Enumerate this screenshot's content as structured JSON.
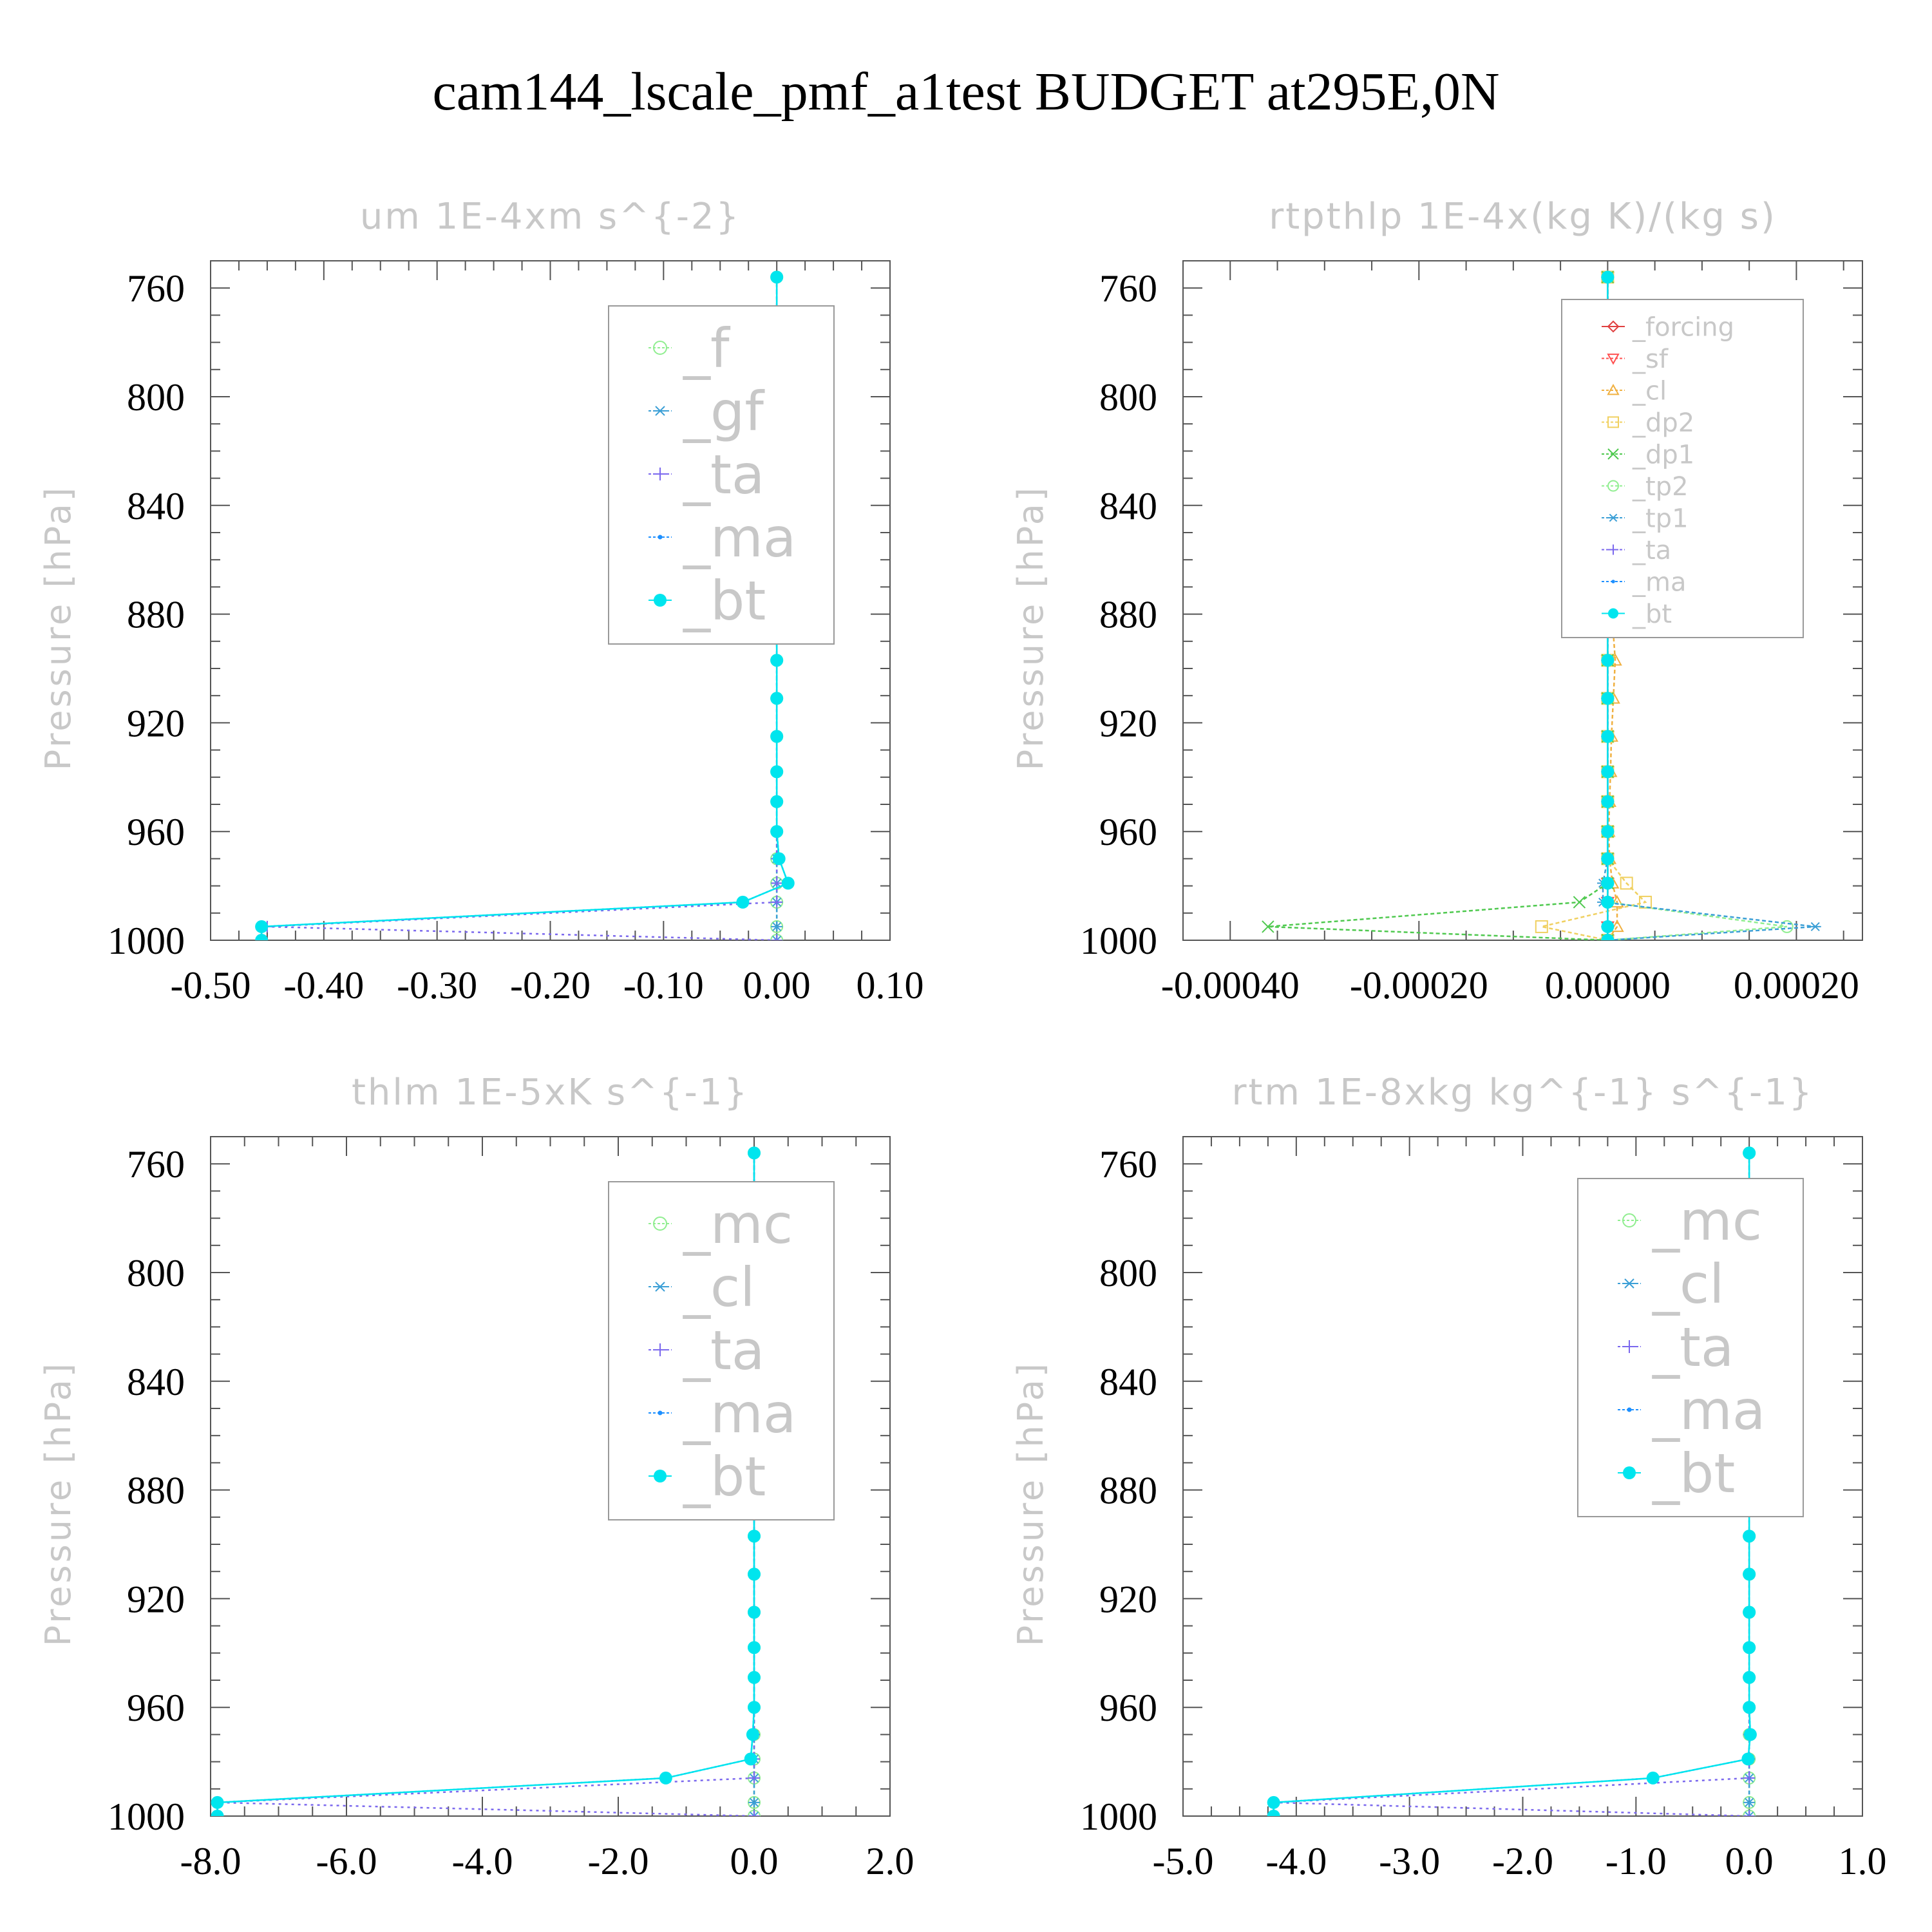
{
  "figure": {
    "title": "cam144_lscale_pmf_a1test  BUDGET at295E,0N"
  },
  "chart_data": [
    {
      "type": "line",
      "title": "um  1E-4xm s^{-2}",
      "ylabel": "Pressure [hPa]",
      "xlim": [
        -0.5,
        0.1
      ],
      "ylim": [
        1000,
        750
      ],
      "xticks": [
        "-0.50",
        "-0.40",
        "-0.30",
        "-0.20",
        "-0.10",
        "0.00",
        "0.10"
      ],
      "xtick_values": [
        -0.5,
        -0.4,
        -0.3,
        -0.2,
        -0.1,
        0.0,
        0.1
      ],
      "yticks": [
        "760",
        "800",
        "840",
        "880",
        "920",
        "960",
        "1000"
      ],
      "ytick_values": [
        760,
        800,
        840,
        880,
        920,
        960,
        1000
      ],
      "legend_scale": 2,
      "pressure": [
        756,
        781,
        804,
        826,
        847,
        865,
        882,
        897,
        911,
        925,
        938,
        949,
        960,
        970,
        979,
        986,
        995,
        1000
      ],
      "series": [
        {
          "name": "_f",
          "color": "#90ee90",
          "marker": "circle-open",
          "dash": "6,4",
          "values": [
            0,
            0,
            0,
            0,
            0,
            0,
            0,
            0,
            0,
            0,
            0,
            0,
            0,
            0,
            0,
            0,
            0,
            0
          ]
        },
        {
          "name": "_gf",
          "color": "#3b9fd6",
          "marker": "asterisk",
          "dash": "6,4",
          "values": [
            0,
            0,
            0,
            0,
            0,
            0,
            0,
            0,
            0,
            0,
            0,
            0,
            0,
            0,
            0,
            0,
            0,
            0
          ]
        },
        {
          "name": "_ta",
          "color": "#7b68ee",
          "marker": "plus",
          "dash": "4,6",
          "values": [
            0,
            0,
            0,
            0,
            0,
            0,
            0,
            0,
            0,
            0,
            0,
            0,
            0,
            0,
            0,
            0,
            -0.45,
            0
          ]
        },
        {
          "name": "_ma",
          "color": "#1e90ff",
          "marker": "dot",
          "dash": "3,3",
          "values": [
            0,
            0,
            0,
            0,
            0,
            0,
            0,
            0,
            0,
            0,
            0,
            0,
            0,
            0.002,
            0.01,
            -0.03,
            -0.455,
            -0.455
          ]
        },
        {
          "name": "_bt",
          "color": "#00e5ee",
          "marker": "filled",
          "dash": "",
          "values": [
            0,
            0,
            0,
            0,
            0,
            0,
            0,
            0,
            0,
            0,
            0,
            0,
            0,
            0.002,
            0.01,
            -0.03,
            -0.455,
            -0.455
          ]
        }
      ]
    },
    {
      "type": "line",
      "title": "rtpthlp  1E-4x(kg K)/(kg s)",
      "ylabel": "Pressure [hPa]",
      "xlim": [
        -0.00045,
        0.00027
      ],
      "ylim": [
        1000,
        750
      ],
      "xticks": [
        "-0.00040",
        "-0.00020",
        "0.00000",
        "0.00020"
      ],
      "xtick_values": [
        -0.0004,
        -0.0002,
        0.0,
        0.0002
      ],
      "yticks": [
        "760",
        "800",
        "840",
        "880",
        "920",
        "960",
        "1000"
      ],
      "ytick_values": [
        760,
        800,
        840,
        880,
        920,
        960,
        1000
      ],
      "legend_scale": 1,
      "pressure": [
        756,
        781,
        804,
        826,
        847,
        865,
        882,
        897,
        911,
        925,
        938,
        949,
        960,
        970,
        979,
        986,
        995,
        1000
      ],
      "series": [
        {
          "name": "_forcing",
          "color": "#e04040",
          "marker": "diamond-open",
          "dash": "",
          "values": [
            0,
            0,
            0,
            0,
            0,
            0,
            0,
            0,
            0,
            0,
            0,
            0,
            0,
            0,
            0,
            0,
            0,
            0
          ]
        },
        {
          "name": "_sf",
          "color": "#ff5050",
          "marker": "triangle-down",
          "dash": "6,4",
          "values": [
            0,
            0,
            0,
            0,
            0,
            0,
            0,
            0,
            0,
            0,
            0,
            0,
            0,
            0,
            0,
            0,
            0,
            0
          ]
        },
        {
          "name": "_cl",
          "color": "#f0b040",
          "marker": "triangle-up",
          "dash": "6,4",
          "values": [
            0,
            0,
            0,
            0,
            0,
            3e-06,
            5e-06,
            8e-06,
            6e-06,
            4e-06,
            3e-06,
            2e-06,
            1e-06,
            2e-06,
            5e-06,
            1e-05,
            1e-05,
            0
          ]
        },
        {
          "name": "_dp2",
          "color": "#f0d060",
          "marker": "square-open",
          "dash": "6,4",
          "values": [
            0,
            0,
            0,
            0,
            0,
            0,
            0,
            0,
            0,
            0,
            0,
            0,
            0,
            0,
            2e-05,
            4e-05,
            -7e-05,
            0
          ]
        },
        {
          "name": "_dp1",
          "color": "#4fc94f",
          "marker": "x",
          "dash": "6,4",
          "values": [
            0,
            0,
            0,
            0,
            0,
            0,
            0,
            0,
            0,
            0,
            0,
            0,
            0,
            0,
            0,
            -3e-05,
            -0.00036,
            0
          ]
        },
        {
          "name": "_tp2",
          "color": "#90ee90",
          "marker": "circle-open",
          "dash": "6,4",
          "values": [
            0,
            0,
            0,
            0,
            0,
            0,
            0,
            0,
            0,
            0,
            0,
            0,
            0,
            0,
            0,
            0,
            0.00019,
            0
          ]
        },
        {
          "name": "_tp1",
          "color": "#3b9fd6",
          "marker": "asterisk",
          "dash": "6,4",
          "values": [
            0,
            0,
            0,
            0,
            0,
            0,
            0,
            0,
            0,
            0,
            0,
            0,
            0,
            0,
            -5e-06,
            -5e-06,
            0.00022,
            0
          ]
        },
        {
          "name": "_ta",
          "color": "#7b68ee",
          "marker": "plus",
          "dash": "4,6",
          "values": [
            0,
            0,
            0,
            0,
            0,
            0,
            0,
            0,
            0,
            0,
            0,
            0,
            0,
            0,
            0,
            0,
            0,
            0
          ]
        },
        {
          "name": "_ma",
          "color": "#1e90ff",
          "marker": "dot",
          "dash": "3,3",
          "values": [
            0,
            0,
            0,
            0,
            0,
            0,
            0,
            0,
            0,
            0,
            0,
            0,
            0,
            0,
            0,
            0,
            0,
            0
          ]
        },
        {
          "name": "_bt",
          "color": "#00e5ee",
          "marker": "filled",
          "dash": "",
          "values": [
            0,
            0,
            0,
            0,
            0,
            0,
            0,
            0,
            0,
            0,
            0,
            0,
            0,
            0,
            0,
            0,
            0,
            0
          ]
        }
      ]
    },
    {
      "type": "line",
      "title": "thlm  1E-5xK s^{-1}",
      "ylabel": "Pressure [hPa]",
      "xlim": [
        -8.0,
        2.0
      ],
      "ylim": [
        1000,
        750
      ],
      "xticks": [
        "-8.0",
        "-6.0",
        "-4.0",
        "-2.0",
        "0.0",
        "2.0"
      ],
      "xtick_values": [
        -8.0,
        -6.0,
        -4.0,
        -2.0,
        0.0,
        2.0
      ],
      "yticks": [
        "760",
        "800",
        "840",
        "880",
        "920",
        "960",
        "1000"
      ],
      "ytick_values": [
        760,
        800,
        840,
        880,
        920,
        960,
        1000
      ],
      "legend_scale": 2,
      "pressure": [
        756,
        781,
        804,
        826,
        847,
        865,
        882,
        897,
        911,
        925,
        938,
        949,
        960,
        970,
        979,
        986,
        995,
        1000
      ],
      "series": [
        {
          "name": "_mc",
          "color": "#90ee90",
          "marker": "circle-open",
          "dash": "6,4",
          "values": [
            0,
            0,
            0,
            0,
            0,
            0,
            0,
            0,
            0,
            0,
            0,
            0,
            0,
            0,
            0,
            0,
            0,
            0
          ]
        },
        {
          "name": "_cl",
          "color": "#3b9fd6",
          "marker": "asterisk",
          "dash": "6,4",
          "values": [
            0,
            0,
            0,
            0,
            0,
            0,
            0,
            0,
            0,
            0,
            0,
            0,
            0,
            0,
            0,
            0,
            0,
            0
          ]
        },
        {
          "name": "_ta",
          "color": "#7b68ee",
          "marker": "plus",
          "dash": "4,6",
          "values": [
            0,
            0,
            0,
            0,
            0,
            0,
            0,
            0,
            0,
            0,
            0,
            0,
            0,
            0,
            0,
            0,
            -7.9,
            0
          ]
        },
        {
          "name": "_ma",
          "color": "#1e90ff",
          "marker": "dot",
          "dash": "3,3",
          "values": [
            0,
            0,
            0,
            0,
            0,
            0,
            0,
            0,
            0,
            0,
            0,
            0,
            0,
            -0.02,
            -0.05,
            -1.3,
            -7.9,
            -7.9
          ]
        },
        {
          "name": "_bt",
          "color": "#00e5ee",
          "marker": "filled",
          "dash": "",
          "values": [
            0,
            0,
            0,
            0,
            0,
            0,
            0,
            0,
            0,
            0,
            0,
            0,
            0,
            -0.02,
            -0.05,
            -1.3,
            -7.9,
            -7.9
          ]
        }
      ]
    },
    {
      "type": "line",
      "title": "rtm  1E-8xkg kg^{-1} s^{-1}",
      "ylabel": "Pressure [hPa]",
      "xlim": [
        -5.0,
        1.0
      ],
      "ylim": [
        1000,
        750
      ],
      "xticks": [
        "-5.0",
        "-4.0",
        "-3.0",
        "-2.0",
        "-1.0",
        "0.0",
        "1.0"
      ],
      "xtick_values": [
        -5.0,
        -4.0,
        -3.0,
        -2.0,
        -1.0,
        0.0,
        1.0
      ],
      "yticks": [
        "760",
        "800",
        "840",
        "880",
        "920",
        "960",
        "1000"
      ],
      "ytick_values": [
        760,
        800,
        840,
        880,
        920,
        960,
        1000
      ],
      "legend_scale": 2,
      "pressure": [
        756,
        781,
        804,
        826,
        847,
        865,
        882,
        897,
        911,
        925,
        938,
        949,
        960,
        970,
        979,
        986,
        995,
        1000
      ],
      "series": [
        {
          "name": "_mc",
          "color": "#90ee90",
          "marker": "circle-open",
          "dash": "6,4",
          "values": [
            0,
            0,
            0,
            0,
            0,
            0,
            0,
            0,
            0,
            0,
            0,
            0,
            0,
            0,
            0,
            0,
            0,
            0
          ]
        },
        {
          "name": "_cl",
          "color": "#3b9fd6",
          "marker": "asterisk",
          "dash": "6,4",
          "values": [
            0,
            0,
            0,
            0,
            0,
            0,
            0,
            0,
            0,
            0,
            0,
            0,
            0,
            0,
            0,
            0,
            0,
            0
          ]
        },
        {
          "name": "_ta",
          "color": "#7b68ee",
          "marker": "plus",
          "dash": "4,6",
          "values": [
            0,
            0,
            0,
            0,
            0,
            0,
            0,
            0,
            0,
            0,
            0,
            0,
            0,
            0,
            0,
            0,
            -4.2,
            0
          ]
        },
        {
          "name": "_ma",
          "color": "#1e90ff",
          "marker": "dot",
          "dash": "3,3",
          "values": [
            0,
            0,
            0,
            0,
            0,
            0,
            0,
            0,
            0,
            0,
            0,
            0,
            0,
            0.01,
            -0.01,
            -0.85,
            -4.2,
            -4.2
          ]
        },
        {
          "name": "_bt",
          "color": "#00e5ee",
          "marker": "filled",
          "dash": "",
          "values": [
            0,
            0,
            0,
            0,
            0,
            0,
            0,
            0,
            0,
            0,
            0,
            0,
            0,
            0.01,
            -0.01,
            -0.85,
            -4.2,
            -4.2
          ]
        }
      ]
    }
  ]
}
